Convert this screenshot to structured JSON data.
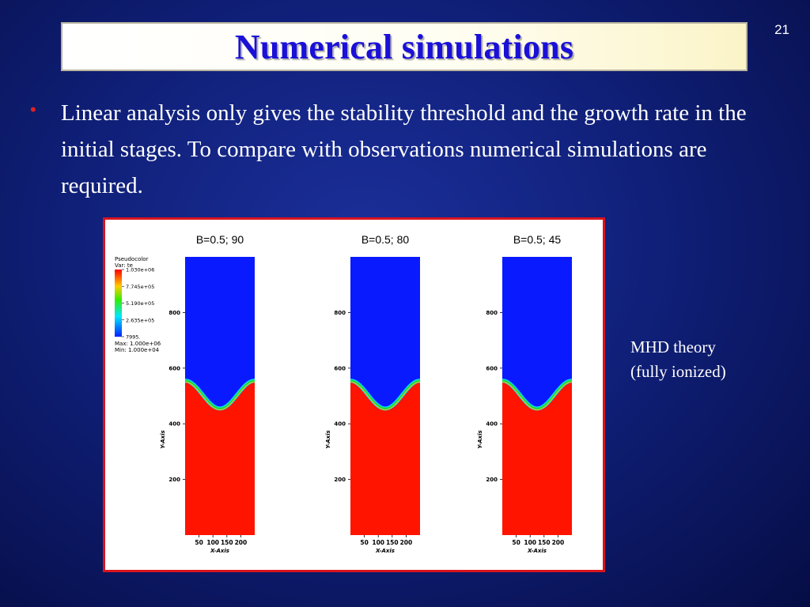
{
  "slide": {
    "number": "21",
    "title": "Numerical simulations",
    "bullet": "Linear analysis only gives the stability threshold and the growth rate in the initial stages. To compare with observations numerical simulations are required.",
    "side_label": [
      "MHD theory",
      "(fully ionized)"
    ]
  },
  "colors": {
    "upper_fluid": "#0a1aff",
    "lower_fluid": "#ff1400",
    "interface": "#20d840",
    "title_text": "#1a10d8",
    "frame": "#d8141e"
  },
  "legend": {
    "header": [
      "Pseudocolor",
      "Var: te"
    ],
    "ticks": [
      "1.030e+06",
      "7.745e+05",
      "5.190e+05",
      "2.635e+05",
      "7995."
    ],
    "max": "Max:  1.000e+06",
    "min": "Min:  1.000e+04"
  },
  "chart_data": [
    {
      "type": "heatmap",
      "title": "B=0.5; 90",
      "xlabel": "X-Axis",
      "ylabel": "Y-Axis",
      "xticks": [
        "50",
        "100",
        "150",
        "200"
      ],
      "yticks": [
        "200",
        "400",
        "600",
        "800"
      ],
      "xlim": [
        0,
        250
      ],
      "ylim": [
        0,
        1000
      ],
      "interface": {
        "edge_y": 555,
        "trough_y": 455
      }
    },
    {
      "type": "heatmap",
      "title": "B=0.5; 80",
      "xlabel": "X-Axis",
      "ylabel": "Y-Axis",
      "xticks": [
        "50",
        "100",
        "150",
        "200"
      ],
      "yticks": [
        "200",
        "400",
        "600",
        "800"
      ],
      "xlim": [
        0,
        250
      ],
      "ylim": [
        0,
        1000
      ],
      "interface": {
        "edge_y": 555,
        "trough_y": 455
      }
    },
    {
      "type": "heatmap",
      "title": "B=0.5; 45",
      "xlabel": "X-Axis",
      "ylabel": "Y-Axis",
      "xticks": [
        "50",
        "100",
        "150",
        "200"
      ],
      "yticks": [
        "200",
        "400",
        "600",
        "800"
      ],
      "xlim": [
        0,
        250
      ],
      "ylim": [
        0,
        1000
      ],
      "interface": {
        "edge_y": 555,
        "trough_y": 455
      }
    }
  ]
}
